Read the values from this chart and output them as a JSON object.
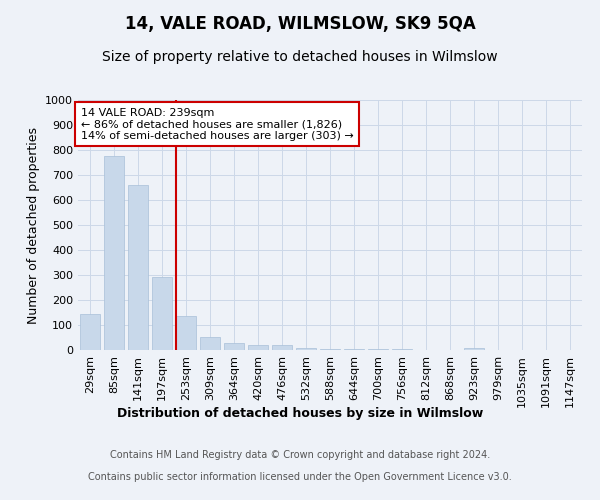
{
  "title": "14, VALE ROAD, WILMSLOW, SK9 5QA",
  "subtitle": "Size of property relative to detached houses in Wilmslow",
  "xlabel": "Distribution of detached houses by size in Wilmslow",
  "ylabel": "Number of detached properties",
  "bar_labels": [
    "29sqm",
    "85sqm",
    "141sqm",
    "197sqm",
    "253sqm",
    "309sqm",
    "364sqm",
    "420sqm",
    "476sqm",
    "532sqm",
    "588sqm",
    "644sqm",
    "700sqm",
    "756sqm",
    "812sqm",
    "868sqm",
    "923sqm",
    "979sqm",
    "1035sqm",
    "1091sqm",
    "1147sqm"
  ],
  "bar_values": [
    143,
    778,
    660,
    293,
    138,
    53,
    30,
    22,
    22,
    10,
    6,
    5,
    5,
    4,
    1,
    0,
    10,
    0,
    0,
    0,
    0
  ],
  "bar_color": "#c8d8ea",
  "bar_edge_color": "#a8c0d8",
  "vline_index": 4,
  "vline_color": "#cc0000",
  "annotation_line1": "14 VALE ROAD: 239sqm",
  "annotation_line2": "← 86% of detached houses are smaller (1,826)",
  "annotation_line3": "14% of semi-detached houses are larger (303) →",
  "annotation_box_color": "#ffffff",
  "annotation_box_edge": "#cc0000",
  "ylim": [
    0,
    1000
  ],
  "yticks": [
    0,
    100,
    200,
    300,
    400,
    500,
    600,
    700,
    800,
    900,
    1000
  ],
  "grid_color": "#ccd8e8",
  "background_color": "#eef2f8",
  "footer_line1": "Contains HM Land Registry data © Crown copyright and database right 2024.",
  "footer_line2": "Contains public sector information licensed under the Open Government Licence v3.0.",
  "title_fontsize": 12,
  "subtitle_fontsize": 10,
  "tick_fontsize": 8,
  "ylabel_fontsize": 9,
  "xlabel_fontsize": 9,
  "annotation_fontsize": 8,
  "footer_fontsize": 7
}
